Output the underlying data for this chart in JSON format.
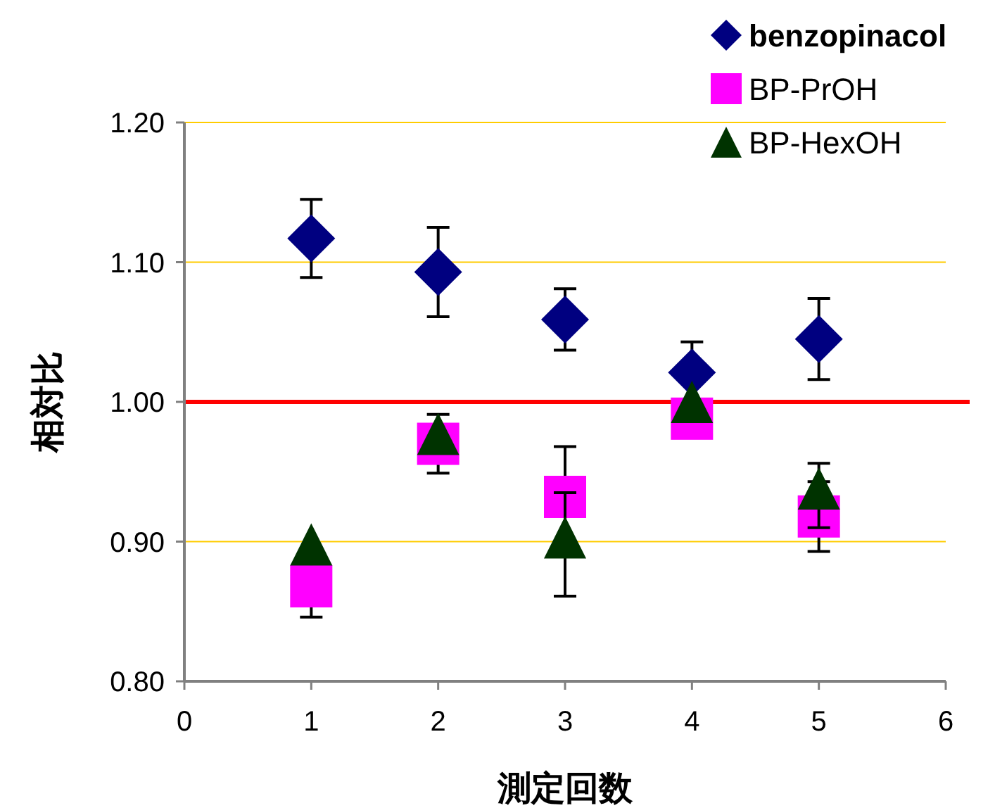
{
  "chart_data": {
    "type": "scatter",
    "xlabel": "測定回数",
    "ylabel": "相対比",
    "x": [
      1,
      2,
      3,
      4,
      5
    ],
    "series": [
      {
        "name": "benzopinacol",
        "color": "#000080",
        "marker": "diamond",
        "values": [
          1.117,
          1.093,
          1.059,
          1.021,
          1.045
        ],
        "errors": [
          0.028,
          0.032,
          0.022,
          0.022,
          0.029
        ]
      },
      {
        "name": "BP-PrOH",
        "color": "#ff00ff",
        "marker": "square",
        "values": [
          0.868,
          0.97,
          0.932,
          0.988,
          0.918
        ],
        "errors": [
          0.022,
          0.021,
          0.036,
          null,
          0.025
        ]
      },
      {
        "name": "BP-HexOH",
        "color": "#003300",
        "marker": "triangle",
        "values": [
          0.893,
          0.972,
          0.898,
          0.995,
          0.933
        ],
        "errors": [
          null,
          null,
          0.037,
          null,
          0.023
        ]
      }
    ],
    "xlim": [
      0,
      6
    ],
    "xticks": [
      0,
      1,
      2,
      3,
      4,
      5,
      6
    ],
    "ylim": [
      0.8,
      1.2
    ],
    "yticks": [
      {
        "value": 0.8,
        "label": "0.80"
      },
      {
        "value": 0.9,
        "label": "0.90"
      },
      {
        "value": 1.0,
        "label": "1.00"
      },
      {
        "value": 1.1,
        "label": "1.10"
      },
      {
        "value": 1.2,
        "label": "1.20"
      }
    ],
    "grid": "y",
    "legend": "top right",
    "ref_lines": [
      {
        "axis": "y",
        "value": 1.0,
        "color": "#ff0000"
      }
    ]
  }
}
